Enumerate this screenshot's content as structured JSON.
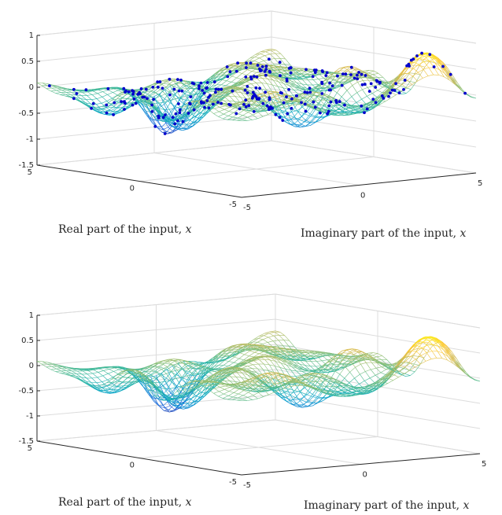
{
  "figure": {
    "panels": [
      {
        "id": "top",
        "show_samples": true,
        "xlabel_text": "Real part of the input, ",
        "ylabel_text": "Imaginary part of the input, ",
        "var": "x"
      },
      {
        "id": "bottom",
        "show_samples": false,
        "xlabel_text": "Real part of the input, ",
        "ylabel_text": "Imaginary part of the input, ",
        "var": "x"
      }
    ]
  },
  "chart_data": [
    {
      "type": "surface-mesh-3d",
      "title": "",
      "xlabel": "Real part of the input, x",
      "ylabel": "Imaginary part of the input, x",
      "zlabel": "",
      "xlim": [
        -5,
        5
      ],
      "ylim": [
        -5,
        5
      ],
      "zlim": [
        -1.5,
        1
      ],
      "xticks": [
        "-5",
        "0",
        "5"
      ],
      "yticks": [
        "-5",
        "0",
        "5"
      ],
      "zticks": [
        "-1.5",
        "-1",
        "-0.5",
        "0",
        "0.5",
        "1"
      ],
      "colormap": "parula",
      "colormap_stops": [
        "#352a87",
        "#0f5cdd",
        "#1481d6",
        "#06a4ca",
        "#2eb7a4",
        "#87bf77",
        "#d1bb59",
        "#fec832",
        "#f9fb0e"
      ],
      "sample_marker_color": "#0000cc",
      "samples_overlaid": true,
      "grid": true
    },
    {
      "type": "surface-mesh-3d",
      "title": "",
      "xlabel": "Real part of the input, x",
      "ylabel": "Imaginary part of the input, x",
      "zlabel": "",
      "xlim": [
        -5,
        5
      ],
      "ylim": [
        -5,
        5
      ],
      "zlim": [
        -1.5,
        1
      ],
      "xticks": [
        "-5",
        "0",
        "5"
      ],
      "yticks": [
        "-5",
        "0",
        "5"
      ],
      "zticks": [
        "-1.5",
        "-1",
        "-0.5",
        "0",
        "0.5",
        "1"
      ],
      "colormap": "parula",
      "colormap_stops": [
        "#352a87",
        "#0f5cdd",
        "#1481d6",
        "#06a4ca",
        "#2eb7a4",
        "#87bf77",
        "#d1bb59",
        "#fec832",
        "#f9fb0e"
      ],
      "samples_overlaid": false,
      "grid": true
    }
  ]
}
